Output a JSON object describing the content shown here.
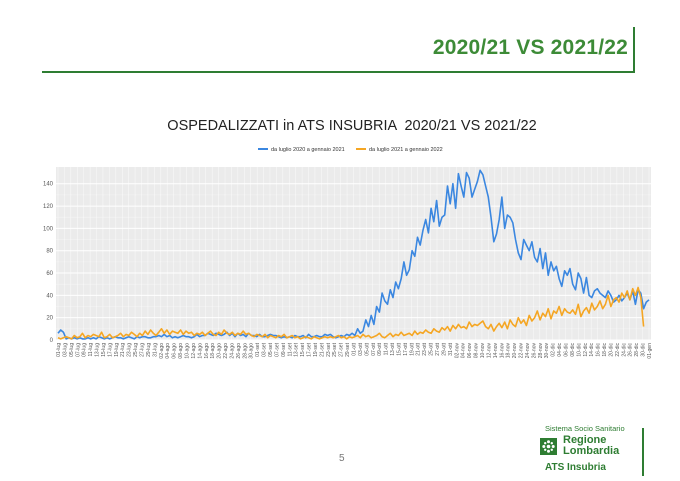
{
  "slide": {
    "title": "2020/21 VS 2021/22",
    "page_number": "5"
  },
  "logo": {
    "tagline": "Sistema Socio Sanitario",
    "region_line1": "Regione",
    "region_line2": "Lombardia",
    "agency": "ATS Insubria"
  },
  "colors": {
    "series_2020": "#3b87e0",
    "series_2021": "#f5a623",
    "accent_green": "#3d8b37",
    "panel_background": "#ebebeb"
  },
  "chart_data": {
    "type": "line",
    "title": "OSPEDALIZZATI in ATS INSUBRIA  2020/21 VS 2021/22",
    "xlabel": "",
    "ylabel": "",
    "ylim": [
      0,
      155
    ],
    "yticks": [
      0,
      20,
      40,
      60,
      80,
      100,
      120,
      140
    ],
    "grid": true,
    "legend_position": "top",
    "x_tick_labels": [
      "01-lug",
      "03-lug",
      "05-lug",
      "07-lug",
      "09-lug",
      "11-lug",
      "13-lug",
      "15-lug",
      "17-lug",
      "19-lug",
      "21-lug",
      "23-lug",
      "25-lug",
      "27-lug",
      "29-lug",
      "31-lug",
      "02-ago",
      "04-ago",
      "06-ago",
      "08-ago",
      "10-ago",
      "12-ago",
      "14-ago",
      "16-ago",
      "18-ago",
      "20-ago",
      "22-ago",
      "24-ago",
      "26-ago",
      "28-ago",
      "30-ago",
      "01-set",
      "03-set",
      "05-set",
      "07-set",
      "09-set",
      "11-set",
      "13-set",
      "15-set",
      "17-set",
      "19-set",
      "21-set",
      "23-set",
      "25-set",
      "27-set",
      "29-set",
      "01-ott",
      "03-ott",
      "05-ott",
      "07-ott",
      "09-ott",
      "11-ott",
      "13-ott",
      "15-ott",
      "17-ott",
      "19-ott",
      "21-ott",
      "23-ott",
      "25-ott",
      "27-ott",
      "29-ott",
      "31-ott",
      "02-nov",
      "04-nov",
      "06-nov",
      "08-nov",
      "10-nov",
      "12-nov",
      "14-nov",
      "16-nov",
      "18-nov",
      "20-nov",
      "22-nov",
      "24-nov",
      "26-nov",
      "28-nov",
      "30-nov",
      "02-dic",
      "04-dic",
      "06-dic",
      "08-dic",
      "10-dic",
      "12-dic",
      "14-dic",
      "16-dic",
      "18-dic",
      "20-dic",
      "22-dic",
      "24-dic",
      "26-dic",
      "28-dic",
      "30-dic",
      "01-gen"
    ],
    "series": [
      {
        "name": "da luglio 2020 a gennaio 2021",
        "values": [
          6,
          9,
          7,
          1,
          2,
          1,
          2,
          1,
          2,
          1,
          1,
          2,
          1,
          2,
          1,
          3,
          2,
          1,
          2,
          1,
          2,
          3,
          2,
          2,
          1,
          2,
          3,
          2,
          1,
          3,
          2,
          3,
          3,
          2,
          2,
          3,
          3,
          4,
          3,
          5,
          3,
          4,
          2,
          3,
          2,
          3,
          4,
          3,
          3,
          2,
          3,
          5,
          3,
          4,
          4,
          6,
          5,
          4,
          6,
          5,
          4,
          5,
          7,
          4,
          6,
          3,
          6,
          4,
          5,
          3,
          6,
          4,
          4,
          3,
          5,
          3,
          3,
          4,
          5,
          4,
          4,
          3,
          2,
          3,
          2,
          3,
          2,
          4,
          3,
          3,
          4,
          2,
          5,
          3,
          3,
          4,
          3,
          3,
          5,
          4,
          5,
          3,
          2,
          3,
          4,
          3,
          5,
          4,
          6,
          4,
          10,
          6,
          8,
          18,
          12,
          22,
          14,
          30,
          25,
          42,
          35,
          32,
          45,
          38,
          52,
          46,
          55,
          70,
          58,
          63,
          80,
          75,
          92,
          85,
          98,
          108,
          96,
          118,
          106,
          125,
          102,
          110,
          112,
          138,
          122,
          140,
          118,
          149,
          138,
          128,
          150,
          145,
          128,
          135,
          142,
          152,
          148,
          138,
          128,
          110,
          88,
          95,
          108,
          128,
          100,
          112,
          110,
          105,
          90,
          78,
          72,
          90,
          85,
          80,
          88,
          74,
          70,
          82,
          64,
          78,
          58,
          70,
          62,
          66,
          55,
          48,
          62,
          58,
          64,
          50,
          45,
          60,
          55,
          42,
          56,
          40,
          38,
          44,
          46,
          42,
          40,
          38,
          44,
          40,
          34,
          36,
          40,
          35,
          38,
          42,
          36,
          44,
          32,
          45,
          42,
          28,
          34,
          36
        ]
      },
      {
        "name": "da luglio 2021 a gennaio 2022",
        "values": [
          2,
          1,
          2,
          3,
          2,
          1,
          4,
          2,
          3,
          6,
          2,
          4,
          3,
          5,
          4,
          3,
          7,
          2,
          3,
          5,
          2,
          3,
          4,
          6,
          3,
          5,
          4,
          7,
          5,
          3,
          6,
          4,
          8,
          5,
          9,
          6,
          4,
          7,
          10,
          6,
          9,
          5,
          8,
          7,
          6,
          9,
          5,
          8,
          6,
          7,
          4,
          6,
          5,
          7,
          4,
          6,
          8,
          5,
          4,
          7,
          5,
          9,
          6,
          5,
          7,
          4,
          6,
          5,
          8,
          5,
          6,
          4,
          3,
          5,
          4,
          3,
          5,
          2,
          4,
          3,
          2,
          4,
          3,
          5,
          2,
          3,
          4,
          2,
          3,
          1,
          2,
          3,
          2,
          1,
          3,
          2,
          1,
          2,
          3,
          2,
          3,
          2,
          3,
          4,
          2,
          3,
          1,
          3,
          2,
          3,
          4,
          2,
          5,
          3,
          4,
          2,
          3,
          4,
          6,
          3,
          2,
          4,
          6,
          3,
          5,
          4,
          7,
          4,
          5,
          6,
          4,
          8,
          5,
          7,
          6,
          9,
          7,
          6,
          10,
          8,
          7,
          11,
          9,
          12,
          8,
          13,
          10,
          14,
          11,
          12,
          10,
          16,
          12,
          14,
          13,
          15,
          17,
          12,
          10,
          14,
          8,
          12,
          15,
          11,
          16,
          10,
          18,
          14,
          12,
          20,
          15,
          18,
          13,
          22,
          17,
          20,
          26,
          18,
          24,
          21,
          28,
          19,
          26,
          24,
          30,
          22,
          28,
          25,
          24,
          27,
          23,
          32,
          21,
          26,
          29,
          24,
          33,
          27,
          30,
          35,
          28,
          32,
          40,
          30,
          36,
          38,
          34,
          42,
          38,
          44,
          36,
          46,
          40,
          47,
          38,
          12
        ]
      }
    ]
  }
}
